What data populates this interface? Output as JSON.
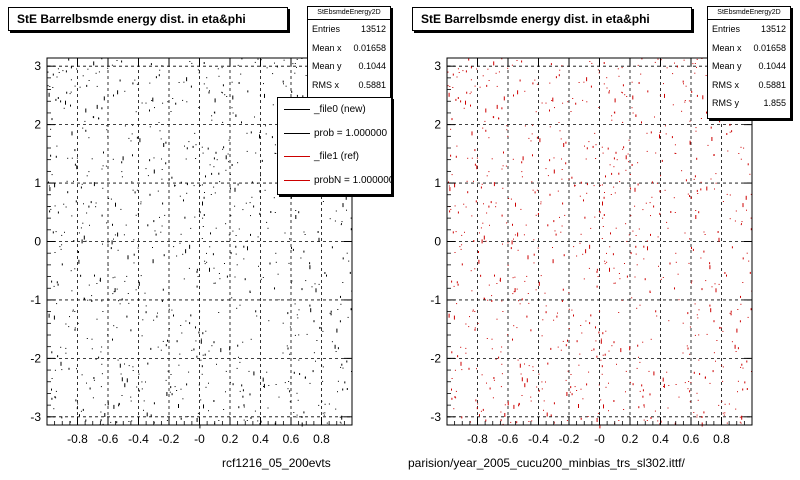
{
  "chart_data": [
    {
      "type": "scatter",
      "title": "StE Barrelbsmde energy dist. in eta&phi",
      "xlabel": "",
      "ylabel": "",
      "xlim": [
        -1.0,
        1.0
      ],
      "ylim": [
        -3.14,
        3.14
      ],
      "x_ticks": [
        "-0.8",
        "-0.6",
        "-0.4",
        "-0.2",
        "-0",
        "0.2",
        "0.4",
        "0.6",
        "0.8"
      ],
      "x_tick_values": [
        -0.8,
        -0.6,
        -0.4,
        -0.2,
        0,
        0.2,
        0.4,
        0.6,
        0.8
      ],
      "y_ticks": [
        "3",
        "2",
        "1",
        "0",
        "-1",
        "-2",
        "-3"
      ],
      "y_tick_values": [
        3,
        2,
        1,
        0,
        -1,
        -2,
        -3
      ],
      "grid": true,
      "marker_color": "#000000",
      "stats": {
        "name": "StEbsmdeEnergy2D",
        "rows": [
          {
            "label": "Entries",
            "value": "13512"
          },
          {
            "label": "Mean x",
            "value": "0.01658"
          },
          {
            "label": "Mean y",
            "value": "0.1044"
          },
          {
            "label": "RMS x",
            "value": "0.5881"
          }
        ]
      },
      "legend": {
        "placement": "top-right",
        "entries": [
          {
            "label": "_file0 (new)",
            "color": "#000000"
          },
          {
            "label": "prob = 1.000000",
            "color": "#000000"
          },
          {
            "label": "_file1 (ref)",
            "color": "#cc0000"
          },
          {
            "label": "probN = 1.000000",
            "color": "#cc0000"
          }
        ]
      },
      "footer": "rcf1216_05_200evts"
    },
    {
      "type": "scatter",
      "title": "StE Barrelbsmde energy dist. in eta&phi",
      "xlabel": "",
      "ylabel": "",
      "xlim": [
        -1.0,
        1.0
      ],
      "ylim": [
        -3.14,
        3.14
      ],
      "x_ticks": [
        "-0.8",
        "-0.6",
        "-0.4",
        "-0.2",
        "-0",
        "0.2",
        "0.4",
        "0.6",
        "0.8"
      ],
      "x_tick_values": [
        -0.8,
        -0.6,
        -0.4,
        -0.2,
        0,
        0.2,
        0.4,
        0.6,
        0.8
      ],
      "y_ticks": [
        "3",
        "2",
        "1",
        "0",
        "-1",
        "-2",
        "-3"
      ],
      "y_tick_values": [
        3,
        2,
        1,
        0,
        -1,
        -2,
        -3
      ],
      "grid": true,
      "marker_color": "#cc0000",
      "stats": {
        "name": "StEbsmdeEnergy2D",
        "rows": [
          {
            "label": "Entries",
            "value": "13512"
          },
          {
            "label": "Mean x",
            "value": "0.01658"
          },
          {
            "label": "Mean y",
            "value": "0.1044"
          },
          {
            "label": "RMS x",
            "value": "0.5881"
          },
          {
            "label": "RMS y",
            "value": "1.855"
          }
        ]
      },
      "footer": "parision/year_2005_cucu200_minbias_trs_sl302.ittf/"
    }
  ]
}
